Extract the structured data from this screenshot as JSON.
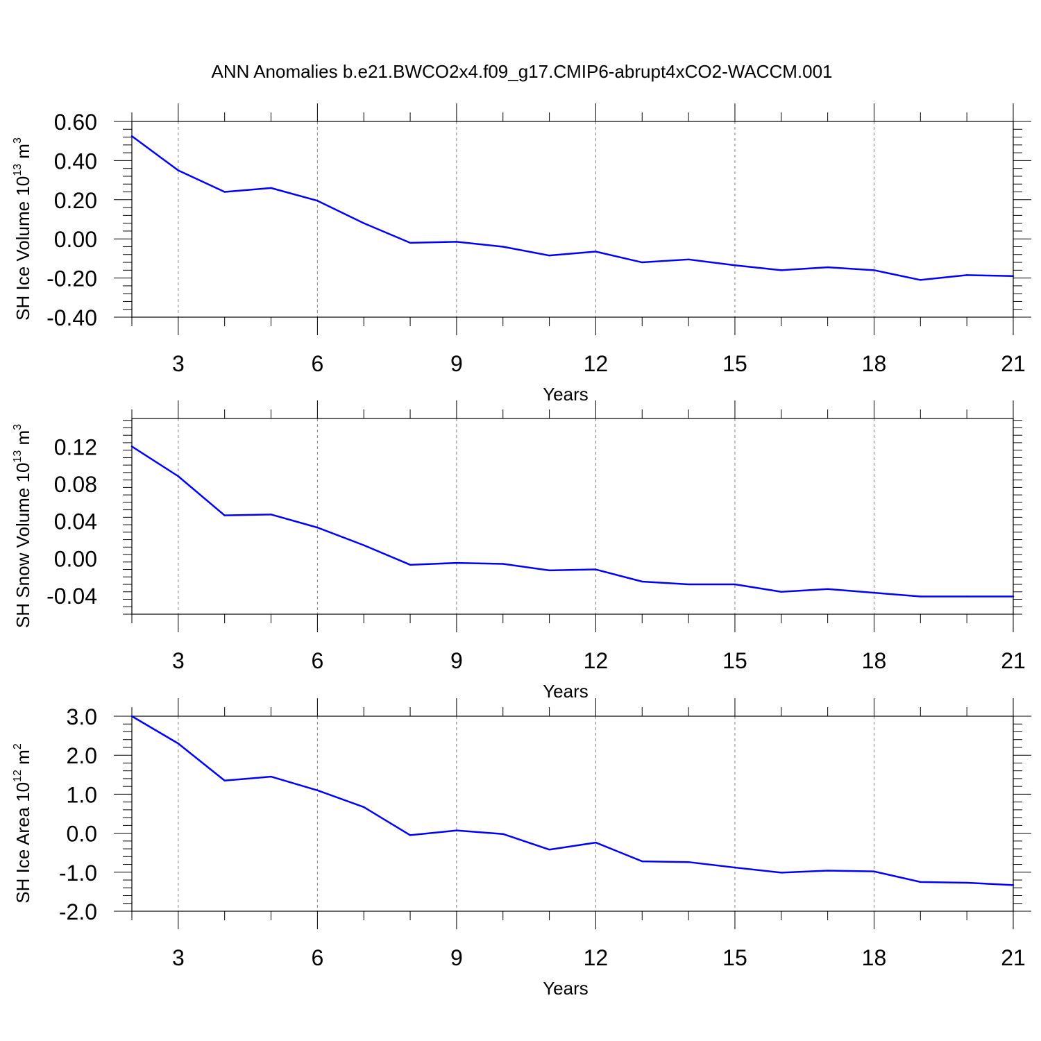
{
  "title": "ANN Anomalies b.e21.BWCO2x4.f09_g17.CMIP6-abrupt4xCO2-WACCM.001",
  "colors": {
    "line": "#0000ff",
    "axis": "#000000",
    "grid": "#808080"
  },
  "chart_data": [
    {
      "type": "line",
      "xlabel": "Years",
      "ylabel": {
        "text": "SH Ice Volume 10",
        "sup1": "13",
        "unit": " m",
        "sup2": "3"
      },
      "xlim": [
        2,
        21
      ],
      "ylim": [
        -0.4,
        0.6
      ],
      "xticks": [
        3,
        6,
        9,
        12,
        15,
        18,
        21
      ],
      "yticks": [
        -0.4,
        -0.2,
        0.0,
        0.2,
        0.4,
        0.6
      ],
      "ytick_labels": [
        "-0.40",
        "-0.20",
        "0.00",
        "0.20",
        "0.40",
        "0.60"
      ],
      "grid": "dashed vertical at major x ticks",
      "series": [
        {
          "x": [
            2,
            3,
            4,
            5,
            6,
            7,
            8,
            9,
            10,
            11,
            12,
            13,
            14,
            15,
            16,
            17,
            18,
            19,
            20,
            21
          ],
          "values": [
            0.525,
            0.35,
            0.24,
            0.26,
            0.195,
            0.08,
            -0.02,
            -0.015,
            -0.04,
            -0.085,
            -0.065,
            -0.12,
            -0.105,
            -0.135,
            -0.16,
            -0.145,
            -0.16,
            -0.21,
            -0.185,
            -0.19
          ]
        }
      ]
    },
    {
      "type": "line",
      "xlabel": "Years",
      "ylabel": {
        "text": "SH Snow Volume 10",
        "sup1": "13",
        "unit": " m",
        "sup2": "3"
      },
      "xlim": [
        2,
        21
      ],
      "ylim": [
        -0.06,
        0.15
      ],
      "xticks": [
        3,
        6,
        9,
        12,
        15,
        18,
        21
      ],
      "yticks": [
        -0.04,
        0.0,
        0.04,
        0.08,
        0.12
      ],
      "ytick_labels": [
        "-0.04",
        "0.00",
        "0.04",
        "0.08",
        "0.12"
      ],
      "grid": "dashed vertical at major x ticks",
      "series": [
        {
          "x": [
            2,
            3,
            4,
            5,
            6,
            7,
            8,
            9,
            10,
            11,
            12,
            13,
            14,
            15,
            16,
            17,
            18,
            19,
            20,
            21
          ],
          "values": [
            0.12,
            0.088,
            0.046,
            0.047,
            0.033,
            0.014,
            -0.007,
            -0.005,
            -0.006,
            -0.013,
            -0.012,
            -0.025,
            -0.028,
            -0.028,
            -0.036,
            -0.033,
            -0.037,
            -0.041,
            -0.041,
            -0.041
          ]
        }
      ]
    },
    {
      "type": "line",
      "xlabel": "Years",
      "ylabel": {
        "text": "SH Ice Area 10",
        "sup1": "12",
        "unit": " m",
        "sup2": "2"
      },
      "xlim": [
        2,
        21
      ],
      "ylim": [
        -2.0,
        3.0
      ],
      "xticks": [
        3,
        6,
        9,
        12,
        15,
        18,
        21
      ],
      "yticks": [
        -2.0,
        -1.0,
        0.0,
        1.0,
        2.0,
        3.0
      ],
      "ytick_labels": [
        "-2.0",
        "-1.0",
        "0.0",
        "1.0",
        "2.0",
        "3.0"
      ],
      "grid": "dashed vertical at major x ticks",
      "series": [
        {
          "x": [
            2,
            3,
            4,
            5,
            6,
            7,
            8,
            9,
            10,
            11,
            12,
            13,
            14,
            15,
            16,
            17,
            18,
            19,
            20,
            21
          ],
          "values": [
            3.0,
            2.3,
            1.35,
            1.45,
            1.1,
            0.67,
            -0.05,
            0.07,
            -0.02,
            -0.42,
            -0.24,
            -0.72,
            -0.74,
            -0.88,
            -1.01,
            -0.96,
            -0.98,
            -1.25,
            -1.27,
            -1.33
          ]
        }
      ]
    }
  ]
}
